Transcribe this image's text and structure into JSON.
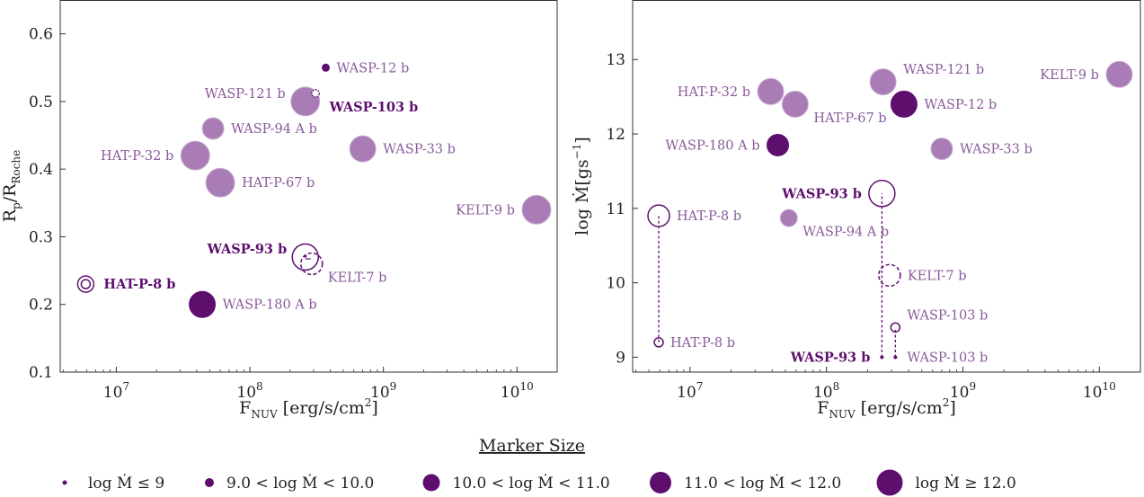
{
  "colors": {
    "dark": "#5e0f6e",
    "light": "#a97cb6",
    "dark_text": "#5e0f6e",
    "light_text": "#8a5a9a"
  },
  "chart_data": [
    {
      "type": "scatter",
      "panel": "left",
      "xscale": "log",
      "xlim": [
        3800000.0,
        20000000000.0
      ],
      "ylim": [
        0.1,
        0.65
      ],
      "xticks": [
        {
          "v": 10000000.0,
          "b": "10",
          "e": "7"
        },
        {
          "v": 100000000.0,
          "b": "10",
          "e": "8"
        },
        {
          "v": 1000000000.0,
          "b": "10",
          "e": "9"
        },
        {
          "v": 10000000000.0,
          "b": "10",
          "e": "10"
        }
      ],
      "yticks": [
        0.1,
        0.2,
        0.3,
        0.4,
        0.5,
        0.6
      ],
      "xlabel": {
        "main": "F",
        "sub": "NUV",
        "rest": " [erg/s/cm",
        "sup": "2",
        "end": "]"
      },
      "ylabel": {
        "main": "R",
        "sub1": "p",
        "mid": "/R",
        "sub2": "Roche"
      },
      "points": [
        {
          "name": "WASP-12 b",
          "x": 370000000.0,
          "y": 0.55,
          "size": 5,
          "style": "dark",
          "label": "WASP-12 b",
          "label_side": "right",
          "text_dark": false
        },
        {
          "name": "WASP-121 b",
          "x": 260000000.0,
          "y": 0.5,
          "size": 4,
          "style": "light",
          "label": "WASP-121 b",
          "label_side": "left-up",
          "text_dark": false
        },
        {
          "name": "WASP-103 b",
          "x": 310000000.0,
          "y": 0.512,
          "size": 1,
          "style": "hatched",
          "label": "WASP-103 b",
          "label_side": "right-down",
          "text_dark": true
        },
        {
          "name": "WASP-94 A b",
          "x": 53000000.0,
          "y": 0.46,
          "size": 2,
          "style": "light",
          "label": "WASP-94 A b",
          "label_side": "right",
          "text_dark": false
        },
        {
          "name": "WASP-33 b",
          "x": 700000000.0,
          "y": 0.43,
          "size": 3,
          "style": "light",
          "label": "WASP-33 b",
          "label_side": "right",
          "text_dark": false
        },
        {
          "name": "HAT-P-32 b",
          "x": 39000000.0,
          "y": 0.42,
          "size": 4,
          "style": "light",
          "label": "HAT-P-32 b",
          "label_side": "left",
          "text_dark": false
        },
        {
          "name": "HAT-P-67 b",
          "x": 60000000.0,
          "y": 0.38,
          "size": 4,
          "style": "light",
          "label": "HAT-P-67 b",
          "label_side": "right",
          "text_dark": false
        },
        {
          "name": "KELT-9 b",
          "x": 14000000000.0,
          "y": 0.34,
          "size": 4,
          "style": "light",
          "label": "KELT-9 b",
          "label_side": "left",
          "text_dark": false
        },
        {
          "name": "WASP-93 b",
          "x": 260000000.0,
          "y": 0.27,
          "size": 3,
          "style": "open-inner",
          "label": "WASP-93 b",
          "label_side": "left-up",
          "text_dark": true
        },
        {
          "name": "KELT-7 b",
          "x": 290000000.0,
          "y": 0.26,
          "size": 2,
          "style": "dashed",
          "label": "KELT-7 b",
          "label_side": "right-down",
          "text_dark": false
        },
        {
          "name": "HAT-P-8 b",
          "x": 5900000.0,
          "y": 0.23,
          "size": 2,
          "style": "double-ring",
          "label": "HAT-P-8 b",
          "label_side": "right",
          "text_dark": true
        },
        {
          "name": "WASP-180 A b",
          "x": 44000000.0,
          "y": 0.2,
          "size": 3,
          "style": "dark",
          "label": "WASP-180 A b",
          "label_side": "right",
          "text_dark": false
        }
      ]
    },
    {
      "type": "scatter",
      "panel": "right",
      "xscale": "log",
      "xlim": [
        3800000.0,
        20000000000.0
      ],
      "ylim": [
        8.8,
        13.8
      ],
      "xticks": [
        {
          "v": 10000000.0,
          "b": "10",
          "e": "7"
        },
        {
          "v": 100000000.0,
          "b": "10",
          "e": "8"
        },
        {
          "v": 1000000000.0,
          "b": "10",
          "e": "9"
        },
        {
          "v": 10000000000.0,
          "b": "10",
          "e": "10"
        }
      ],
      "yticks": [
        9,
        10,
        11,
        12,
        13
      ],
      "xlabel": {
        "main": "F",
        "sub": "NUV",
        "rest": " [erg/s/cm",
        "sup": "2",
        "end": "]"
      },
      "ylabel": {
        "text": "log Ṁ[gs",
        "sup": "−1",
        "end": "]"
      },
      "lines": [
        {
          "x": 5900000.0,
          "y1": 9.2,
          "y2": 10.9
        },
        {
          "x": 255000000.0,
          "y1": 9.0,
          "y2": 11.2
        },
        {
          "x": 320000000.0,
          "y1": 9.0,
          "y2": 9.4
        }
      ],
      "points": [
        {
          "name": "KELT-9 b",
          "x": 14000000000.0,
          "y": 12.8,
          "size": 3,
          "style": "light",
          "label": "KELT-9 b",
          "label_side": "left",
          "text_dark": false
        },
        {
          "name": "WASP-121 b",
          "x": 260000000.0,
          "y": 12.7,
          "size": 3,
          "style": "light",
          "label": "WASP-121 b",
          "label_side": "right-up",
          "text_dark": false
        },
        {
          "name": "HAT-P-32 b",
          "x": 39000000.0,
          "y": 12.57,
          "size": 3,
          "style": "light",
          "label": "HAT-P-32 b",
          "label_side": "left",
          "text_dark": false
        },
        {
          "name": "WASP-12 b",
          "x": 370000000.0,
          "y": 12.4,
          "size": 3,
          "style": "dark",
          "label": "WASP-12 b",
          "label_side": "right",
          "text_dark": false
        },
        {
          "name": "HAT-P-67 b",
          "x": 59000000.0,
          "y": 12.4,
          "size": 3,
          "style": "light",
          "label": "HAT-P-67 b",
          "label_side": "right-down",
          "text_dark": false
        },
        {
          "name": "WASP-180 A b",
          "x": 44000000.0,
          "y": 11.85,
          "size": 2,
          "style": "dark",
          "label": "WASP-180 A b",
          "label_side": "left",
          "text_dark": false
        },
        {
          "name": "WASP-33 b",
          "x": 700000000.0,
          "y": 11.8,
          "size": 2,
          "style": "light",
          "label": "WASP-33 b",
          "label_side": "right",
          "text_dark": false
        },
        {
          "name": "WASP-93 b",
          "x": 255000000.0,
          "y": 11.2,
          "size": 3,
          "style": "open",
          "label": "WASP-93 b",
          "label_side": "left",
          "text_dark": true
        },
        {
          "name": "HAT-P-8 b",
          "x": 5900000.0,
          "y": 10.9,
          "size": 2,
          "style": "open",
          "label": "HAT-P-8 b",
          "label_side": "right",
          "text_dark": false
        },
        {
          "name": "WASP-94 A b",
          "x": 53000000.0,
          "y": 10.87,
          "size": 1,
          "style": "light",
          "label": "WASP-94 A b",
          "label_side": "right-down",
          "text_dark": false
        },
        {
          "name": "KELT-7 b",
          "x": 290000000.0,
          "y": 10.1,
          "size": 2,
          "style": "dashed",
          "label": "KELT-7 b",
          "label_side": "right",
          "text_dark": false
        },
        {
          "name": "WASP-103 b",
          "x": 320000000.0,
          "y": 9.4,
          "size": 0,
          "style": "open",
          "label": "WASP-103 b",
          "label_side": "right-up",
          "text_dark": false
        },
        {
          "name": "HAT-P-8 b",
          "x": 5900000.0,
          "y": 9.2,
          "size": 0,
          "style": "open",
          "label": "HAT-P-8 b",
          "label_side": "right",
          "text_dark": false
        },
        {
          "name": "WASP-93 b",
          "x": 255000000.0,
          "y": 9.0,
          "size": 0,
          "style": "dot",
          "label": "WASP-93 b",
          "label_side": "left",
          "text_dark": true
        },
        {
          "name": "WASP-103 b",
          "x": 320000000.0,
          "y": 9.0,
          "size": 0,
          "style": "dot",
          "label": "WASP-103 b",
          "label_side": "right",
          "text_dark": false
        }
      ]
    }
  ],
  "legend": {
    "title": "Marker Size",
    "entries": [
      {
        "label": "log Ṁ ≤ 9",
        "size": 0
      },
      {
        "label": "9.0 < log Ṁ < 10.0",
        "size": 1
      },
      {
        "label": "10.0 < log Ṁ < 11.0",
        "size": 2
      },
      {
        "label": "11.0 < log Ṁ < 12.0",
        "size": 3
      },
      {
        "label": "log Ṁ ≥ 12.0",
        "size": 4
      }
    ]
  }
}
